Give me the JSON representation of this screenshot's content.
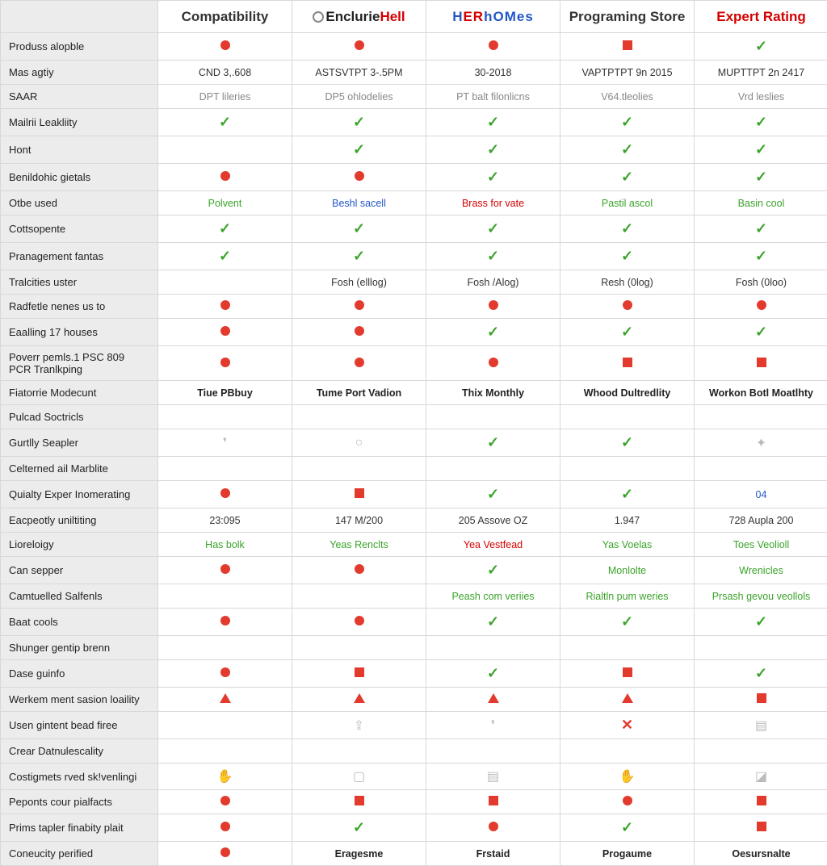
{
  "columns": [
    {
      "key": "c1",
      "label": "Compatibility",
      "style": "plain"
    },
    {
      "key": "c2",
      "label": "EnclurieHell",
      "style": "brand2"
    },
    {
      "key": "c3",
      "label": "HERhOMes",
      "style": "brand3"
    },
    {
      "key": "c4",
      "label": "Programing Store",
      "style": "plain"
    },
    {
      "key": "c5",
      "label": "Expert Rating",
      "style": "red"
    }
  ],
  "rows": [
    {
      "label": "Produss alopble",
      "cells": [
        {
          "t": "dot-red"
        },
        {
          "t": "dot-red"
        },
        {
          "t": "dot-red"
        },
        {
          "t": "sq-red"
        },
        {
          "t": "check"
        }
      ]
    },
    {
      "label": "Mas agtiy",
      "cells": [
        {
          "t": "txt",
          "v": "CND 3,.608"
        },
        {
          "t": "txt",
          "v": "ASTSVTPT 3-.5PM"
        },
        {
          "t": "txt",
          "v": "30-2018"
        },
        {
          "t": "txt",
          "v": "VAPTPTPT 9n 2015"
        },
        {
          "t": "txt",
          "v": "MUPTTPT 2n 2417"
        }
      ]
    },
    {
      "label": "SAAR",
      "cells": [
        {
          "t": "txt",
          "cls": "txt-gray",
          "v": "DPT lileries"
        },
        {
          "t": "txt",
          "cls": "txt-gray",
          "v": "DP5 ohlodelies"
        },
        {
          "t": "txt",
          "cls": "txt-gray",
          "v": "PT balt filonlicns"
        },
        {
          "t": "txt",
          "cls": "txt-gray",
          "v": "V64.tleolies"
        },
        {
          "t": "txt",
          "cls": "txt-gray",
          "v": "Vrd leslies"
        }
      ]
    },
    {
      "label": "Mailrii Leakliity",
      "cells": [
        {
          "t": "check"
        },
        {
          "t": "check"
        },
        {
          "t": "check"
        },
        {
          "t": "check"
        },
        {
          "t": "check"
        }
      ]
    },
    {
      "label": "Hont",
      "cells": [
        {
          "t": "empty"
        },
        {
          "t": "check"
        },
        {
          "t": "check"
        },
        {
          "t": "check"
        },
        {
          "t": "check"
        }
      ]
    },
    {
      "label": "Benildohic gietals",
      "cells": [
        {
          "t": "dot-red"
        },
        {
          "t": "dot-red"
        },
        {
          "t": "check"
        },
        {
          "t": "check"
        },
        {
          "t": "check"
        }
      ]
    },
    {
      "label": "Otbe used",
      "cells": [
        {
          "t": "txt",
          "cls": "txt-green",
          "v": "Polvent"
        },
        {
          "t": "txt",
          "cls": "txt-blue",
          "v": "Beshl sacell"
        },
        {
          "t": "txt",
          "cls": "txt-red",
          "v": "Brass for vate"
        },
        {
          "t": "txt",
          "cls": "txt-green",
          "v": "Pastil ascol"
        },
        {
          "t": "txt",
          "cls": "txt-green",
          "v": "Basin cool"
        }
      ]
    },
    {
      "label": "Cottsopente",
      "cells": [
        {
          "t": "check"
        },
        {
          "t": "check"
        },
        {
          "t": "check"
        },
        {
          "t": "check"
        },
        {
          "t": "check"
        }
      ]
    },
    {
      "label": "Pranagement fantas",
      "cells": [
        {
          "t": "check"
        },
        {
          "t": "check"
        },
        {
          "t": "check"
        },
        {
          "t": "check"
        },
        {
          "t": "check"
        }
      ]
    },
    {
      "label": "Tralcities uster",
      "cells": [
        {
          "t": "empty"
        },
        {
          "t": "txt",
          "v": "Fosh (elllog)"
        },
        {
          "t": "txt",
          "v": "Fosh /Alog)"
        },
        {
          "t": "txt",
          "v": "Resh (0log)"
        },
        {
          "t": "txt",
          "v": "Fosh (0loo)"
        }
      ]
    },
    {
      "label": "Radfetle nenes us to",
      "cells": [
        {
          "t": "dot-red"
        },
        {
          "t": "dot-red"
        },
        {
          "t": "dot-red"
        },
        {
          "t": "dot-red"
        },
        {
          "t": "dot-red"
        }
      ]
    },
    {
      "label": "Eaalling 17 houses",
      "cells": [
        {
          "t": "dot-red"
        },
        {
          "t": "dot-red"
        },
        {
          "t": "check"
        },
        {
          "t": "check"
        },
        {
          "t": "check"
        }
      ]
    },
    {
      "label": "Poverr pemls.1 PSC 809 PCR Tranlkping",
      "cells": [
        {
          "t": "dot-red"
        },
        {
          "t": "dot-red"
        },
        {
          "t": "dot-red"
        },
        {
          "t": "sq-red"
        },
        {
          "t": "sq-red"
        }
      ]
    },
    {
      "label": "Fiatorrie Modecunt",
      "cells": [
        {
          "t": "txt",
          "cls": "txt-bold",
          "v": "Tiue PBbuy"
        },
        {
          "t": "txt",
          "cls": "txt-bold",
          "v": "Tume Port Vadion"
        },
        {
          "t": "txt",
          "cls": "txt-bold",
          "v": "Thix Monthly"
        },
        {
          "t": "txt",
          "cls": "txt-bold",
          "v": "Whood Dultredlity"
        },
        {
          "t": "txt",
          "cls": "txt-bold",
          "v": "Workon Botl Moatlhty"
        }
      ]
    },
    {
      "label": "Pulcad Soctricls",
      "cells": [
        {
          "t": "empty"
        },
        {
          "t": "empty"
        },
        {
          "t": "empty"
        },
        {
          "t": "empty"
        },
        {
          "t": "empty"
        }
      ]
    },
    {
      "label": "Gurtlly Seapler",
      "cells": [
        {
          "t": "glyph",
          "v": "❜"
        },
        {
          "t": "glyph",
          "v": "○"
        },
        {
          "t": "check"
        },
        {
          "t": "check"
        },
        {
          "t": "glyph",
          "v": "✦"
        }
      ]
    },
    {
      "label": "Celterned ail Marblite",
      "cells": [
        {
          "t": "empty"
        },
        {
          "t": "empty"
        },
        {
          "t": "empty"
        },
        {
          "t": "empty"
        },
        {
          "t": "empty"
        }
      ]
    },
    {
      "label": "Quialty Exper Inomerating",
      "cells": [
        {
          "t": "dot-red"
        },
        {
          "t": "sq-red"
        },
        {
          "t": "check"
        },
        {
          "t": "check"
        },
        {
          "t": "txt",
          "cls": "txt-blue",
          "v": "04"
        }
      ]
    },
    {
      "label": "Eacpeotly uniltiting",
      "cells": [
        {
          "t": "txt",
          "v": "23:095"
        },
        {
          "t": "txt",
          "v": "147 M/200"
        },
        {
          "t": "txt",
          "v": "205 Assove OZ"
        },
        {
          "t": "txt",
          "v": "1.947"
        },
        {
          "t": "txt",
          "v": "728 Aupla 200"
        }
      ]
    },
    {
      "label": "Lioreloigy",
      "cells": [
        {
          "t": "txt",
          "cls": "txt-green",
          "v": "Has bolk"
        },
        {
          "t": "txt",
          "cls": "txt-green",
          "v": "Yeas Renclts"
        },
        {
          "t": "txt",
          "cls": "txt-red",
          "v": "Yea Vestfead"
        },
        {
          "t": "txt",
          "cls": "txt-green",
          "v": "Yas Voelas"
        },
        {
          "t": "txt",
          "cls": "txt-green",
          "v": "Toes Veolioll"
        }
      ]
    },
    {
      "label": "Can sepper",
      "cells": [
        {
          "t": "dot-red"
        },
        {
          "t": "dot-red"
        },
        {
          "t": "check"
        },
        {
          "t": "txt",
          "cls": "txt-green",
          "v": "Monlolte"
        },
        {
          "t": "txt",
          "cls": "txt-green",
          "v": "Wrenicles"
        }
      ]
    },
    {
      "label": "Camtuelled Salfenls",
      "cells": [
        {
          "t": "empty"
        },
        {
          "t": "empty"
        },
        {
          "t": "txt",
          "cls": "txt-green",
          "v": "Peash com veriies"
        },
        {
          "t": "txt",
          "cls": "txt-green",
          "v": "Rialtln pum weries"
        },
        {
          "t": "txt",
          "cls": "txt-green",
          "v": "Prsash gevou veollols"
        }
      ]
    },
    {
      "label": "Baat cools",
      "cells": [
        {
          "t": "dot-red"
        },
        {
          "t": "dot-red"
        },
        {
          "t": "check"
        },
        {
          "t": "check"
        },
        {
          "t": "check"
        }
      ]
    },
    {
      "label": "Shunger gentip brenn",
      "cells": [
        {
          "t": "empty"
        },
        {
          "t": "empty"
        },
        {
          "t": "empty"
        },
        {
          "t": "empty"
        },
        {
          "t": "empty"
        }
      ]
    },
    {
      "label": "Dase guinfo",
      "cells": [
        {
          "t": "dot-red"
        },
        {
          "t": "sq-red"
        },
        {
          "t": "check"
        },
        {
          "t": "sq-red"
        },
        {
          "t": "check"
        }
      ]
    },
    {
      "label": "Werkem ment sasion loaility",
      "cells": [
        {
          "t": "tri-red"
        },
        {
          "t": "tri-red"
        },
        {
          "t": "tri-red"
        },
        {
          "t": "tri-red"
        },
        {
          "t": "sq-red"
        }
      ]
    },
    {
      "label": "Usen gintent bead firee",
      "cells": [
        {
          "t": "empty"
        },
        {
          "t": "glyph",
          "v": "⇪"
        },
        {
          "t": "glyph",
          "v": "❜"
        },
        {
          "t": "x-red"
        },
        {
          "t": "glyph",
          "v": "▤"
        }
      ]
    },
    {
      "label": "Crear Datnulescality",
      "cells": [
        {
          "t": "empty"
        },
        {
          "t": "empty"
        },
        {
          "t": "empty"
        },
        {
          "t": "empty"
        },
        {
          "t": "empty"
        }
      ]
    },
    {
      "label": "Costigmets rved sk!venlingi",
      "cells": [
        {
          "t": "glyph-yellow",
          "v": "✋"
        },
        {
          "t": "glyph",
          "v": "▢"
        },
        {
          "t": "glyph",
          "v": "▤"
        },
        {
          "t": "glyph-yellow",
          "v": "✋"
        },
        {
          "t": "glyph",
          "v": "◪"
        }
      ]
    },
    {
      "label": "Peponts cour pialfacts",
      "cells": [
        {
          "t": "dot-red"
        },
        {
          "t": "sq-red"
        },
        {
          "t": "sq-red"
        },
        {
          "t": "dot-red"
        },
        {
          "t": "sq-red"
        }
      ]
    },
    {
      "label": "Prims tapler finabity plait",
      "cells": [
        {
          "t": "dot-red"
        },
        {
          "t": "check"
        },
        {
          "t": "dot-red"
        },
        {
          "t": "check"
        },
        {
          "t": "sq-red"
        }
      ]
    },
    {
      "label": "Coneucity perified",
      "cells": [
        {
          "t": "dot-red"
        },
        {
          "t": "txt",
          "cls": "txt-blue txt-bold",
          "v": "Eragesme"
        },
        {
          "t": "txt",
          "cls": "txt-blue txt-bold",
          "v": "Frstaid"
        },
        {
          "t": "txt",
          "cls": "txt-blue txt-bold",
          "v": "Progaume"
        },
        {
          "t": "txt",
          "cls": "txt-blue txt-bold",
          "v": "Oesursnalte"
        }
      ]
    }
  ]
}
